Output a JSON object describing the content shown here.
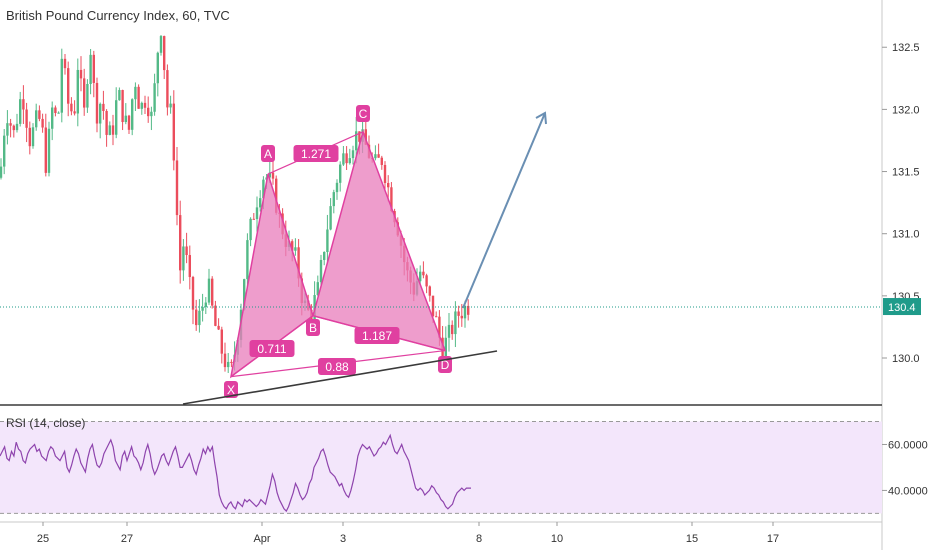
{
  "chart_data": [
    {
      "type": "candlestick",
      "title": "British Pound Currency Index, 60, TVC",
      "ylim": [
        129.63,
        132.88
      ],
      "y_ticks": [
        "132.5",
        "132.0",
        "131.5",
        "131.0",
        "130.5",
        "130.0"
      ],
      "x_ticks": [
        "25",
        "27",
        "Apr",
        "3",
        "8",
        "10",
        "15",
        "17"
      ],
      "last_price": "130.4",
      "last_price_value": 130.41,
      "trendline": {
        "start": [
          0.29,
          129.54
        ],
        "end": [
          7.72,
          130.08
        ]
      },
      "projection_arrow": {
        "start": [
          7.25,
          130.45
        ],
        "end": [
          8.95,
          131.92
        ]
      },
      "pattern": {
        "points": [
          {
            "label": "X",
            "index": 0.95,
            "price": 129.85
          },
          {
            "label": "A",
            "index": 1.62,
            "price": 131.48
          },
          {
            "label": "B",
            "index": 2.8,
            "price": 130.34
          },
          {
            "label": "C",
            "index": 3.34,
            "price": 131.82
          },
          {
            "label": "D",
            "index": 6.98,
            "price": 130.06
          }
        ],
        "ratios": [
          {
            "text": "1.271",
            "from": "A",
            "to": "C"
          },
          {
            "text": "0.711",
            "from": "X",
            "to": "B"
          },
          {
            "text": "1.187",
            "from": "B",
            "to": "D"
          },
          {
            "text": "0.88",
            "from": "X",
            "to": "D"
          }
        ]
      },
      "colors": {
        "up": "#53b987",
        "down": "#eb4d5c",
        "pattern": "#e040a0",
        "pattern_fill": "#e87cbb",
        "arrow": "#6a8fb3",
        "price_line": "#1f9b8a"
      }
    },
    {
      "type": "line",
      "title": "RSI (14, close)",
      "ylim": [
        28,
        75
      ],
      "y_ticks": [
        "60.0000",
        "40.0000"
      ],
      "bands": [
        70,
        30
      ],
      "colors": {
        "line": "#8e44ad",
        "band_fill": "#f3e6fb"
      },
      "values": [
        55,
        57,
        59,
        54,
        53,
        57,
        55,
        61,
        58,
        57,
        53,
        52,
        56,
        58,
        59,
        60,
        57,
        58,
        55,
        54,
        53,
        57,
        59,
        58,
        55,
        54,
        53,
        55,
        57,
        50,
        48,
        51,
        55,
        58,
        56,
        52,
        50,
        48,
        54,
        58,
        60,
        55,
        51,
        50,
        52,
        56,
        58,
        60,
        62,
        59,
        53,
        51,
        49,
        55,
        57,
        53,
        56,
        59,
        55,
        54,
        52,
        49,
        52,
        57,
        60,
        56,
        50,
        47,
        49,
        52,
        55,
        56,
        53,
        51,
        54,
        57,
        59,
        55,
        50,
        50,
        52,
        54,
        56,
        53,
        49,
        47,
        51,
        54,
        58,
        56,
        59,
        57,
        59,
        52,
        46,
        38,
        35,
        33,
        32,
        34,
        35,
        33,
        32,
        35,
        34,
        33,
        36,
        35,
        36,
        35,
        34,
        33,
        34,
        36,
        35,
        34,
        38,
        42,
        47,
        44,
        39,
        36,
        34,
        32,
        31,
        33,
        36,
        39,
        43,
        41,
        38,
        36,
        37,
        39,
        43,
        45,
        50,
        52,
        54,
        57,
        58,
        55,
        51,
        48,
        47,
        46,
        44,
        42,
        43,
        40,
        38,
        37,
        40,
        44,
        49,
        55,
        58,
        60,
        59,
        58,
        59,
        57,
        55,
        56,
        58,
        59,
        61,
        60,
        62,
        64,
        60,
        57,
        56,
        58,
        60,
        57,
        55,
        53,
        49,
        45,
        41,
        40,
        41,
        40,
        38,
        39,
        40,
        42,
        41,
        39,
        38,
        36,
        35,
        33,
        32,
        33,
        34,
        37,
        39,
        40,
        41,
        40,
        41,
        41,
        41
      ]
    }
  ]
}
